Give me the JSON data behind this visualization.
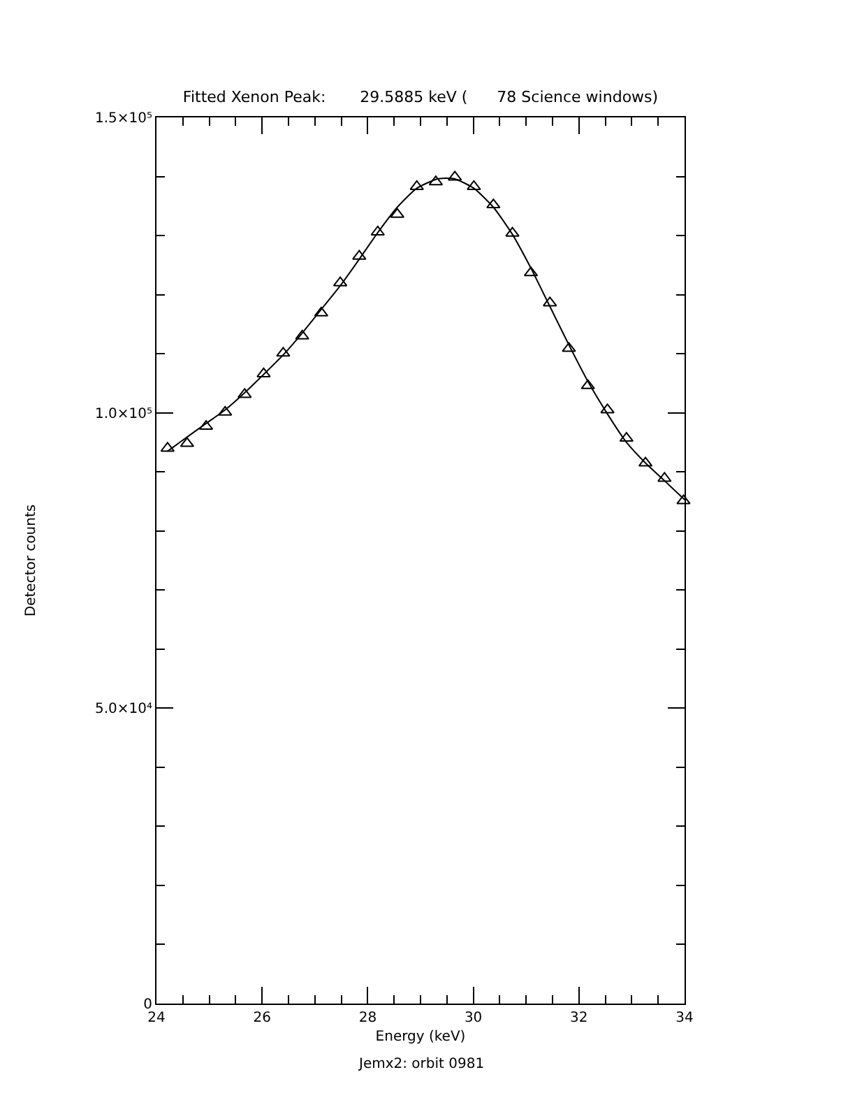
{
  "chart_data": {
    "type": "scatter",
    "title": "Fitted Xenon Peak:       29.5885 keV (      78 Science windows)",
    "xlabel": "Energy (keV)",
    "ylabel": "Detector counts",
    "annotations": [
      "Jemx2: orbit 0981"
    ],
    "xlim": [
      24,
      34
    ],
    "ylim": [
      0,
      150000
    ],
    "xticks": [
      24,
      {
        "value": 24.5,
        "label": null
      },
      {
        "value": 25,
        "label": null
      },
      {
        "value": 25.5,
        "label": null
      },
      26,
      {
        "value": 26.5,
        "label": null
      },
      {
        "value": 27,
        "label": null
      },
      {
        "value": 27.5,
        "label": null
      },
      28,
      {
        "value": 28.5,
        "label": null
      },
      {
        "value": 29,
        "label": null
      },
      {
        "value": 29.5,
        "label": null
      },
      30,
      {
        "value": 30.5,
        "label": null
      },
      {
        "value": 31,
        "label": null
      },
      {
        "value": 31.5,
        "label": null
      },
      32,
      {
        "value": 32.5,
        "label": null
      },
      {
        "value": 33,
        "label": null
      },
      {
        "value": 33.5,
        "label": null
      },
      34
    ],
    "yticks": [
      0,
      {
        "value": 10000,
        "label": null
      },
      {
        "value": 20000,
        "label": null
      },
      {
        "value": 30000,
        "label": null
      },
      {
        "value": 40000,
        "label": null
      },
      {
        "value": 50000,
        "label": "5.0×10⁴"
      },
      {
        "value": 60000,
        "label": null
      },
      {
        "value": 70000,
        "label": null
      },
      {
        "value": 80000,
        "label": null
      },
      {
        "value": 90000,
        "label": null
      },
      {
        "value": 100000,
        "label": "1.0×10⁵"
      },
      {
        "value": 110000,
        "label": null
      },
      {
        "value": 120000,
        "label": null
      },
      {
        "value": 130000,
        "label": null
      },
      {
        "value": 140000,
        "label": null
      },
      {
        "value": 150000,
        "label": "1.5×10⁵"
      }
    ],
    "grid": false,
    "series": [
      {
        "marker": "triangle",
        "color": "#000000",
        "x": [
          24.21,
          24.58,
          24.94,
          25.3,
          25.67,
          26.03,
          26.4,
          26.76,
          27.12,
          27.48,
          27.84,
          28.19,
          28.56,
          28.93,
          29.29,
          29.65,
          30.01,
          30.38,
          30.74,
          31.09,
          31.45,
          31.81,
          32.17,
          32.54,
          32.9,
          33.26,
          33.62,
          33.98
        ],
        "values": [
          94000,
          94800,
          97700,
          100100,
          103100,
          106600,
          110100,
          113000,
          116900,
          122000,
          126500,
          130600,
          133600,
          138300,
          139100,
          139900,
          138300,
          135200,
          130400,
          123700,
          118600,
          110900,
          104600,
          100500,
          95700,
          91500,
          88900,
          85100
        ]
      },
      {
        "type": "line",
        "marker": "none",
        "line_style": "solid",
        "color": "#000000",
        "x": [
          24.21,
          24.58,
          24.94,
          25.3,
          25.67,
          26.03,
          26.4,
          26.76,
          27.12,
          27.48,
          27.84,
          28.19,
          28.56,
          28.93,
          29.29,
          29.47,
          29.65,
          30.01,
          30.38,
          30.74,
          31.09,
          31.45,
          31.81,
          32.17,
          32.54,
          32.9,
          33.26,
          33.62,
          34.0
        ],
        "values": [
          93500,
          95900,
          98200,
          100500,
          103400,
          106500,
          109800,
          113500,
          117500,
          121500,
          126000,
          130500,
          134800,
          138000,
          139500,
          139700,
          139600,
          138000,
          134800,
          130200,
          124500,
          118000,
          111500,
          105300,
          99800,
          95000,
          91500,
          88500,
          85300
        ]
      }
    ]
  }
}
